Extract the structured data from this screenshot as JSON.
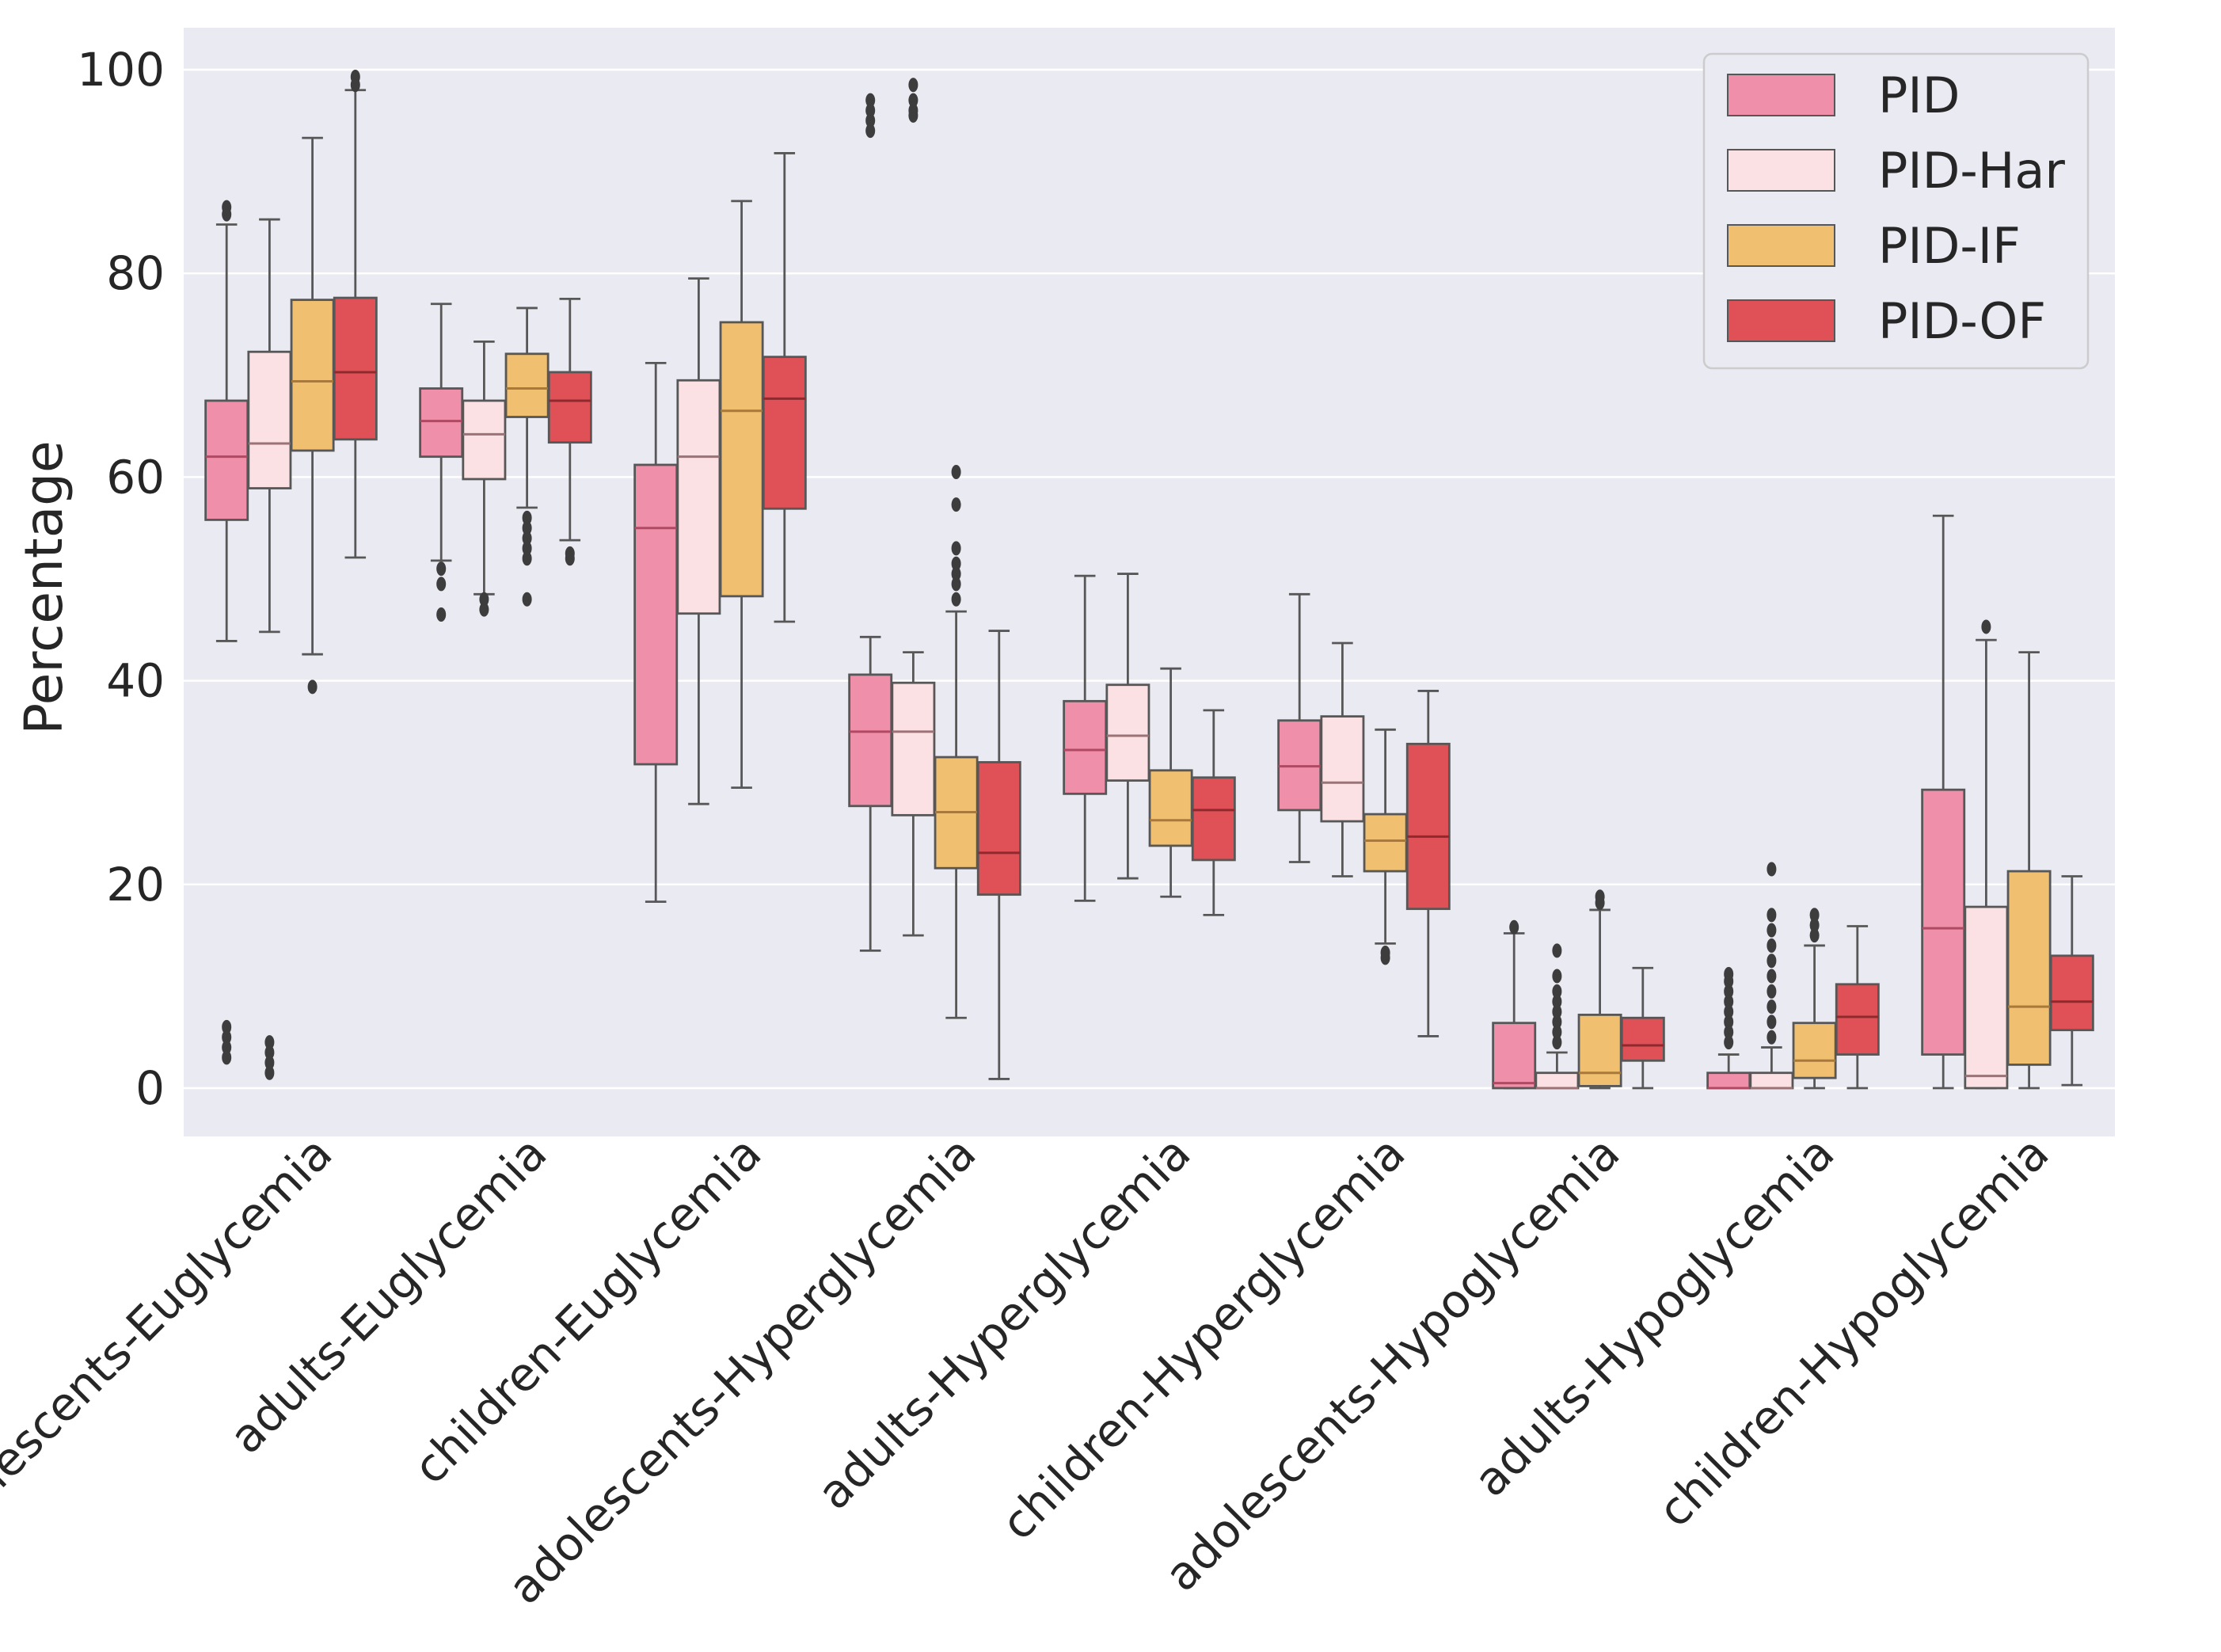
{
  "chart_data": {
    "type": "boxplot",
    "title": "",
    "xlabel": "",
    "ylabel": "Percentage",
    "ylim": [
      -5,
      104
    ],
    "yticks": [
      0,
      20,
      40,
      60,
      80,
      100
    ],
    "grid": true,
    "legend_position": "top-right",
    "categories": [
      "adolescents-Euglycemia",
      "adults-Euglycemia",
      "children-Euglycemia",
      "adolescents-Hyperglycemia",
      "adults-Hyperglycemia",
      "children-Hyperglycemia",
      "adolescents-Hypoglycemia",
      "adults-Hypoglycemia",
      "children-Hypoglycemia"
    ],
    "series": [
      {
        "name": "PID",
        "color": "#f08fa9",
        "median_color": "#b04a63",
        "boxes": [
          {
            "q1": 55.8,
            "median": 62.0,
            "q3": 67.5,
            "lo": 43.9,
            "hi": 84.8,
            "outliers": [
              86.5,
              85.8,
              6.0,
              5.0,
              4.0,
              3.0
            ]
          },
          {
            "q1": 62.0,
            "median": 65.5,
            "q3": 68.7,
            "lo": 51.8,
            "hi": 77.0,
            "outliers": [
              51.0,
              49.5,
              46.5
            ]
          },
          {
            "q1": 31.8,
            "median": 55.0,
            "q3": 61.2,
            "lo": 18.3,
            "hi": 71.2,
            "outliers": []
          },
          {
            "q1": 27.7,
            "median": 35.0,
            "q3": 40.6,
            "lo": 13.5,
            "hi": 44.3,
            "outliers": [
              97.0,
              96.0,
              95.0,
              94.0
            ]
          },
          {
            "q1": 28.9,
            "median": 33.2,
            "q3": 38.0,
            "lo": 18.4,
            "hi": 50.3,
            "outliers": []
          },
          {
            "q1": 27.3,
            "median": 31.6,
            "q3": 36.1,
            "lo": 22.2,
            "hi": 48.5,
            "outliers": []
          },
          {
            "q1": 0.0,
            "median": 0.5,
            "q3": 6.4,
            "lo": 0.0,
            "hi": 15.2,
            "outliers": [
              15.8
            ]
          },
          {
            "q1": 0.0,
            "median": 0.0,
            "q3": 1.5,
            "lo": 0.0,
            "hi": 3.3,
            "outliers": [
              4.5,
              5.5,
              6.5,
              7.5,
              8.5,
              9.5,
              10.5,
              11.2
            ]
          },
          {
            "q1": 3.3,
            "median": 15.7,
            "q3": 29.3,
            "lo": 0.0,
            "hi": 56.2,
            "outliers": []
          }
        ]
      },
      {
        "name": "PID-Har",
        "color": "#fbe1e3",
        "median_color": "#9b7276",
        "boxes": [
          {
            "q1": 58.9,
            "median": 63.3,
            "q3": 72.3,
            "lo": 44.8,
            "hi": 85.3,
            "outliers": [
              4.5,
              3.5,
              2.5,
              1.5
            ]
          },
          {
            "q1": 59.8,
            "median": 64.2,
            "q3": 67.5,
            "lo": 48.5,
            "hi": 73.3,
            "outliers": [
              48.0,
              47.0
            ]
          },
          {
            "q1": 46.6,
            "median": 62.0,
            "q3": 69.5,
            "lo": 27.9,
            "hi": 79.5,
            "outliers": []
          },
          {
            "q1": 26.8,
            "median": 35.0,
            "q3": 39.8,
            "lo": 15.0,
            "hi": 42.8,
            "outliers": [
              98.5,
              97.0,
              96.0,
              95.5
            ]
          },
          {
            "q1": 30.2,
            "median": 34.6,
            "q3": 39.6,
            "lo": 20.6,
            "hi": 50.5,
            "outliers": []
          },
          {
            "q1": 26.2,
            "median": 30.0,
            "q3": 36.5,
            "lo": 20.8,
            "hi": 43.7,
            "outliers": []
          },
          {
            "q1": 0.0,
            "median": 0.0,
            "q3": 1.5,
            "lo": 0.0,
            "hi": 3.5,
            "outliers": [
              4.5,
              5.5,
              6.5,
              7.5,
              8.5,
              9.5,
              11.0,
              13.5
            ]
          },
          {
            "q1": 0.0,
            "median": 0.0,
            "q3": 1.5,
            "lo": 0.0,
            "hi": 4.0,
            "outliers": [
              5.0,
              6.5,
              8.0,
              9.5,
              11.0,
              12.5,
              14.0,
              15.5,
              17.0,
              21.5
            ]
          },
          {
            "q1": 0.0,
            "median": 1.2,
            "q3": 17.8,
            "lo": 0.0,
            "hi": 44.0,
            "outliers": [
              45.3
            ]
          }
        ]
      },
      {
        "name": "PID-IF",
        "color": "#f0bf70",
        "median_color": "#a8793a",
        "boxes": [
          {
            "q1": 62.6,
            "median": 69.4,
            "q3": 77.4,
            "lo": 42.6,
            "hi": 93.3,
            "outliers": [
              39.4
            ]
          },
          {
            "q1": 65.9,
            "median": 68.7,
            "q3": 72.1,
            "lo": 57.0,
            "hi": 76.6,
            "outliers": [
              56.0,
              55.0,
              54.0,
              53.0,
              52.0,
              48.0
            ]
          },
          {
            "q1": 48.3,
            "median": 66.5,
            "q3": 75.2,
            "lo": 29.5,
            "hi": 87.1,
            "outliers": []
          },
          {
            "q1": 21.6,
            "median": 27.1,
            "q3": 32.5,
            "lo": 6.9,
            "hi": 46.8,
            "outliers": [
              48.0,
              49.5,
              50.5,
              51.5,
              53.0,
              57.3,
              60.5
            ]
          },
          {
            "q1": 23.8,
            "median": 26.3,
            "q3": 31.2,
            "lo": 18.8,
            "hi": 41.2,
            "outliers": []
          },
          {
            "q1": 21.3,
            "median": 24.3,
            "q3": 26.9,
            "lo": 14.2,
            "hi": 35.2,
            "outliers": [
              12.8,
              13.3
            ]
          },
          {
            "q1": 0.2,
            "median": 1.5,
            "q3": 7.2,
            "lo": 0.0,
            "hi": 17.5,
            "outliers": [
              18.2,
              18.8
            ]
          },
          {
            "q1": 1.0,
            "median": 2.7,
            "q3": 6.4,
            "lo": 0.0,
            "hi": 14.0,
            "outliers": [
              15.0,
              16.0,
              17.0
            ]
          },
          {
            "q1": 2.3,
            "median": 8.0,
            "q3": 21.3,
            "lo": 0.0,
            "hi": 42.8,
            "outliers": []
          }
        ]
      },
      {
        "name": "PID-OF",
        "color": "#e05157",
        "median_color": "#8e2a2e",
        "boxes": [
          {
            "q1": 63.7,
            "median": 70.3,
            "q3": 77.6,
            "lo": 52.1,
            "hi": 98.0,
            "outliers": [
              98.5,
              99.3
            ]
          },
          {
            "q1": 63.4,
            "median": 67.5,
            "q3": 70.3,
            "lo": 53.8,
            "hi": 77.5,
            "outliers": [
              52.5,
              52.0
            ]
          },
          {
            "q1": 56.9,
            "median": 67.7,
            "q3": 71.8,
            "lo": 45.8,
            "hi": 91.8,
            "outliers": []
          },
          {
            "q1": 19.0,
            "median": 23.1,
            "q3": 32.0,
            "lo": 0.9,
            "hi": 44.9,
            "outliers": []
          },
          {
            "q1": 22.4,
            "median": 27.3,
            "q3": 30.5,
            "lo": 17.0,
            "hi": 37.1,
            "outliers": []
          },
          {
            "q1": 17.6,
            "median": 24.7,
            "q3": 33.8,
            "lo": 5.1,
            "hi": 39.0,
            "outliers": []
          },
          {
            "q1": 2.7,
            "median": 4.2,
            "q3": 6.9,
            "lo": 0.0,
            "hi": 11.8,
            "outliers": []
          },
          {
            "q1": 3.3,
            "median": 7.0,
            "q3": 10.2,
            "lo": 0.0,
            "hi": 15.9,
            "outliers": []
          },
          {
            "q1": 5.7,
            "median": 8.5,
            "q3": 13.0,
            "lo": 0.3,
            "hi": 20.8,
            "outliers": []
          }
        ]
      }
    ]
  }
}
